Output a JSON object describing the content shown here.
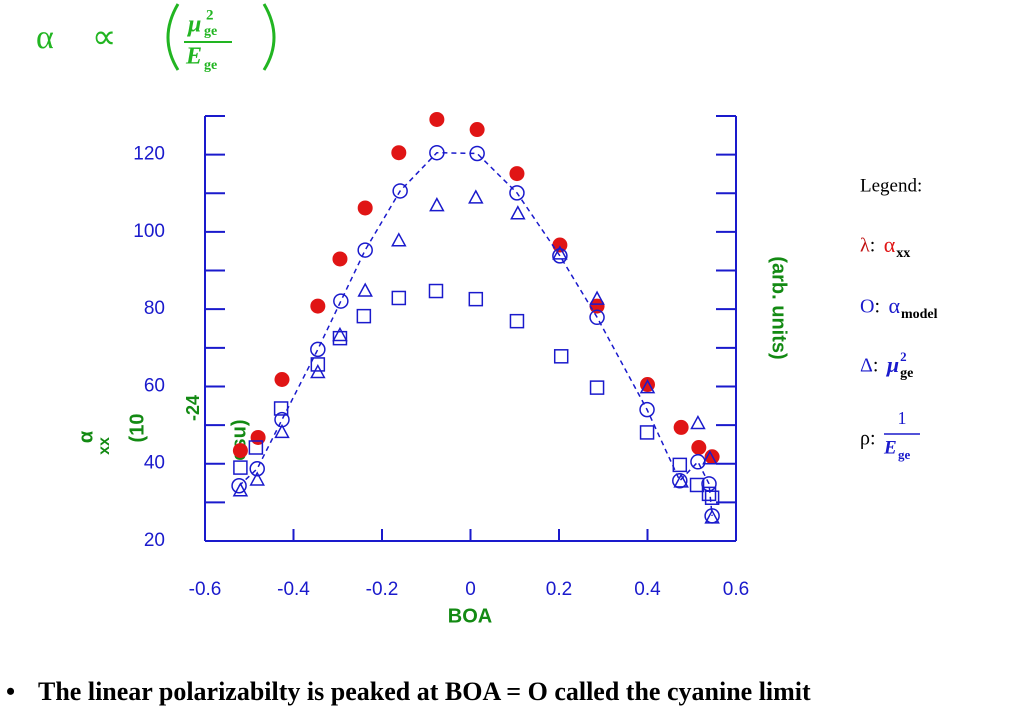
{
  "chart_data": {
    "type": "scatter",
    "title": {
      "symbol": "α",
      "relation": "∝",
      "numerator": "μ",
      "numerator_sup": "2",
      "numerator_sub": "ge",
      "denominator": "E",
      "denominator_sub": "ge"
    },
    "x_label": "BOA",
    "y_label": {
      "symbol": "α",
      "sub": "xx",
      "open": "(10",
      "sup": "-24",
      "unit": "esu)"
    },
    "y2_label": "(arb. units)",
    "legend_title": "Legend:",
    "xlim": [
      -0.6,
      0.6
    ],
    "ylim": [
      20,
      130
    ],
    "xticks": [
      -0.6,
      -0.4,
      -0.2,
      0,
      0.2,
      0.4,
      0.6
    ],
    "yticks": [
      20,
      40,
      60,
      80,
      100,
      120
    ],
    "y_minor_ticks": [
      30,
      50,
      70,
      90,
      110,
      130
    ],
    "series": [
      {
        "key": "λ",
        "name": "α",
        "name_sub": "xx",
        "color": "#e01515",
        "key_color": "#c01010",
        "marker": "filled-circle",
        "x": [
          -0.52,
          -0.48,
          -0.426,
          -0.345,
          -0.295,
          -0.238,
          -0.162,
          -0.076,
          0.015,
          0.105,
          0.202,
          0.286,
          0.4,
          0.476,
          0.516,
          0.546
        ],
        "values": [
          43.4,
          46.8,
          61.8,
          80.8,
          93.0,
          106.2,
          120.5,
          129.1,
          126.5,
          115.1,
          96.6,
          80.8,
          60.5,
          49.4,
          44.2,
          41.8
        ]
      },
      {
        "key": "O",
        "name": "α",
        "name_sub": "model",
        "color": "#1a1acc",
        "key_color": "#1a1acc",
        "marker": "circle",
        "line": "dashed",
        "x": [
          -0.523,
          -0.482,
          -0.426,
          -0.345,
          -0.293,
          -0.238,
          -0.159,
          -0.076,
          0.015,
          0.105,
          0.202,
          0.286,
          0.399,
          0.473,
          0.514,
          0.539,
          0.546
        ],
        "values": [
          34.3,
          38.7,
          51.4,
          69.6,
          82.1,
          95.3,
          110.6,
          120.5,
          120.3,
          110.1,
          93.8,
          77.9,
          54.0,
          35.6,
          40.5,
          34.8,
          26.5
        ]
      },
      {
        "key": "Δ",
        "name": "μ",
        "name_sup": "2",
        "name_sub": "ge",
        "color": "#1a1acc",
        "key_color": "#1a1acc",
        "marker": "triangle",
        "x": [
          -0.52,
          -0.482,
          -0.426,
          -0.345,
          -0.295,
          -0.238,
          -0.162,
          -0.076,
          0.012,
          0.107,
          0.202,
          0.286,
          0.4,
          0.476,
          0.514,
          0.541,
          0.546
        ],
        "values": [
          33.0,
          35.8,
          48.1,
          63.6,
          73.2,
          84.7,
          97.7,
          106.8,
          108.8,
          104.7,
          94.3,
          82.6,
          59.7,
          35.3,
          50.4,
          41.3,
          26.0
        ]
      },
      {
        "key": "ρ",
        "frac_num": "1",
        "name": "E",
        "name_sub": "ge",
        "color": "#1a1acc",
        "key_color": "#000000",
        "marker": "square",
        "x": [
          -0.52,
          -0.485,
          -0.428,
          -0.345,
          -0.295,
          -0.241,
          -0.162,
          -0.078,
          0.012,
          0.105,
          0.205,
          0.286,
          0.399,
          0.473,
          0.512,
          0.539,
          0.546
        ],
        "values": [
          39.0,
          44.2,
          54.3,
          65.7,
          72.5,
          78.2,
          82.9,
          84.7,
          82.6,
          76.9,
          67.8,
          59.7,
          48.1,
          39.7,
          34.5,
          32.2,
          31.2
        ]
      }
    ]
  },
  "footer": {
    "text": "The linear polarizabilty is peaked at BOA = O called the cyanine limit"
  }
}
